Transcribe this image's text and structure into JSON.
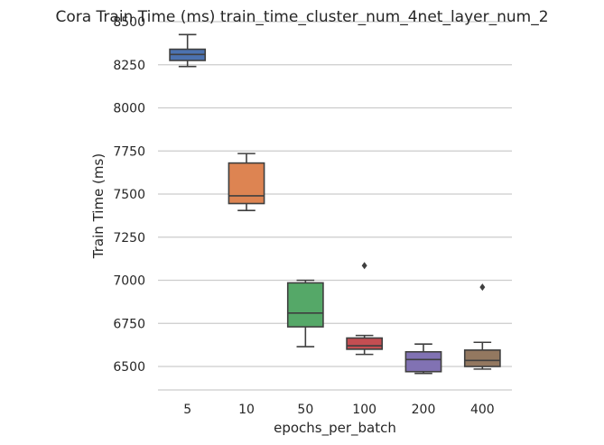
{
  "chart_data": {
    "type": "box",
    "title": "Cora Train Time (ms) train_time_cluster_num_4net_layer_num_2",
    "xlabel": "epochs_per_batch",
    "ylabel": "Train Time (ms)",
    "ylim": [
      6360,
      8500
    ],
    "yticks": [
      6500,
      6750,
      7000,
      7250,
      7500,
      7750,
      8000,
      8250,
      8500
    ],
    "grid": "horizontal",
    "categories": [
      "5",
      "10",
      "50",
      "100",
      "200",
      "400"
    ],
    "boxes": [
      {
        "category": "5",
        "whisker_low": 8240,
        "q1": 8275,
        "median": 8310,
        "q3": 8340,
        "whisker_high": 8425,
        "outliers": [],
        "color": "#4c72b0"
      },
      {
        "category": "10",
        "whisker_low": 7405,
        "q1": 7445,
        "median": 7490,
        "q3": 7680,
        "whisker_high": 7735,
        "outliers": [],
        "color": "#dd8452"
      },
      {
        "category": "50",
        "whisker_low": 6615,
        "q1": 6730,
        "median": 6810,
        "q3": 6985,
        "whisker_high": 7000,
        "outliers": [],
        "color": "#55a868"
      },
      {
        "category": "100",
        "whisker_low": 6570,
        "q1": 6600,
        "median": 6620,
        "q3": 6665,
        "whisker_high": 6680,
        "outliers": [
          7085
        ],
        "color": "#c44e52"
      },
      {
        "category": "200",
        "whisker_low": 6460,
        "q1": 6470,
        "median": 6540,
        "q3": 6585,
        "whisker_high": 6630,
        "outliers": [],
        "color": "#8172b3"
      },
      {
        "category": "400",
        "whisker_low": 6485,
        "q1": 6500,
        "median": 6535,
        "q3": 6595,
        "whisker_high": 6640,
        "outliers": [
          6960
        ],
        "color": "#937860"
      }
    ]
  }
}
